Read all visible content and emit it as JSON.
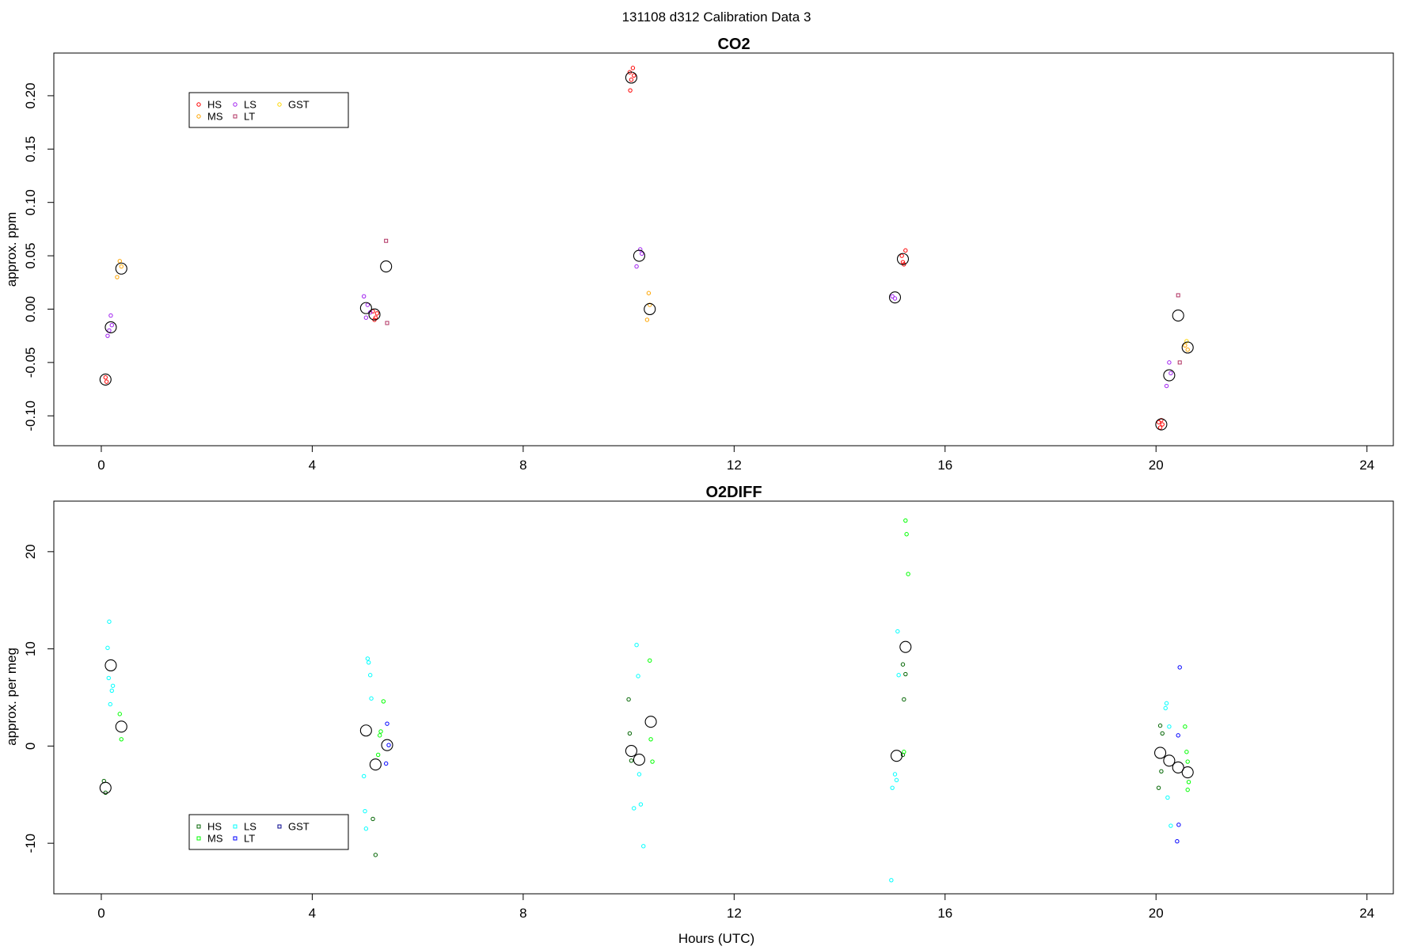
{
  "figure": {
    "suptitle": "131108   d312   Calibration Data 3",
    "xlabel": "Hours (UTC)"
  },
  "chart_data": [
    {
      "type": "scatter",
      "title": "CO2",
      "xlabel": "",
      "ylabel": "approx. ppm",
      "xlim": [
        -0.9,
        24.5
      ],
      "ylim": [
        -0.128,
        0.24
      ],
      "xticks": [
        0,
        4,
        8,
        12,
        16,
        20,
        24
      ],
      "yticks": [
        -0.1,
        -0.05,
        0.0,
        0.05,
        0.1,
        0.15,
        0.2
      ],
      "ytick_labels": [
        "-0.10",
        "-0.05",
        "0.00",
        "0.05",
        "0.10",
        "0.15",
        "0.20"
      ],
      "legend": {
        "position": "top-left",
        "ncol": 3,
        "items": [
          {
            "label": "HS",
            "color": "#ff0000",
            "marker": "circle"
          },
          {
            "label": "MS",
            "color": "#ffa500",
            "marker": "circle"
          },
          {
            "label": "LS",
            "color": "#a020f0",
            "marker": "circle"
          },
          {
            "label": "LT",
            "color": "#b03060",
            "marker": "square"
          },
          {
            "label": "GST",
            "color": "#ffd700",
            "marker": "circle"
          }
        ]
      },
      "series": [
        {
          "name": "HS",
          "color": "#ff0000",
          "marker": "circle",
          "points": [
            [
              0.08,
              -0.064
            ],
            [
              0.1,
              -0.068
            ],
            [
              5.15,
              -0.002
            ],
            [
              5.2,
              -0.008
            ],
            [
              5.18,
              -0.01
            ],
            [
              5.23,
              -0.004
            ],
            [
              10.02,
              0.222
            ],
            [
              10.05,
              0.215
            ],
            [
              10.03,
              0.205
            ],
            [
              10.08,
              0.226
            ],
            [
              10.1,
              0.219
            ],
            [
              15.18,
              0.05
            ],
            [
              15.22,
              0.042
            ],
            [
              15.25,
              0.055
            ],
            [
              15.2,
              0.044
            ],
            [
              20.05,
              -0.106
            ],
            [
              20.08,
              -0.111
            ],
            [
              20.1,
              -0.104
            ],
            [
              20.12,
              -0.108
            ]
          ]
        },
        {
          "name": "MS",
          "color": "#ffa500",
          "marker": "circle",
          "points": [
            [
              0.3,
              0.03
            ],
            [
              0.35,
              0.045
            ],
            [
              0.38,
              0.04
            ],
            [
              10.38,
              0.015
            ],
            [
              10.35,
              -0.01
            ],
            [
              10.4,
              0.004
            ],
            [
              20.55,
              -0.034
            ],
            [
              20.6,
              -0.038
            ]
          ]
        },
        {
          "name": "LS",
          "color": "#a020f0",
          "marker": "circle",
          "points": [
            [
              0.12,
              -0.025
            ],
            [
              0.18,
              -0.006
            ],
            [
              0.2,
              -0.015
            ],
            [
              0.15,
              -0.02
            ],
            [
              4.98,
              0.012
            ],
            [
              5.05,
              0.004
            ],
            [
              5.02,
              -0.008
            ],
            [
              5.1,
              -0.003
            ],
            [
              10.15,
              0.04
            ],
            [
              10.22,
              0.056
            ],
            [
              10.25,
              0.052
            ],
            [
              15.0,
              0.012
            ],
            [
              15.05,
              0.01
            ],
            [
              20.2,
              -0.072
            ],
            [
              20.25,
              -0.05
            ],
            [
              20.28,
              -0.06
            ]
          ]
        },
        {
          "name": "LT",
          "color": "#b03060",
          "marker": "square",
          "points": [
            [
              5.4,
              0.064
            ],
            [
              5.42,
              -0.013
            ],
            [
              20.42,
              0.013
            ],
            [
              20.45,
              -0.05
            ]
          ]
        },
        {
          "name": "GST",
          "color": "#ffd700",
          "marker": "circle",
          "points": [
            [
              20.58,
              -0.03
            ]
          ]
        }
      ],
      "means": {
        "color": "#000000",
        "marker": "large-circle",
        "points": [
          [
            0.08,
            -0.066
          ],
          [
            0.18,
            -0.017
          ],
          [
            0.38,
            0.038
          ],
          [
            5.02,
            0.001
          ],
          [
            5.18,
            -0.005
          ],
          [
            5.4,
            0.04
          ],
          [
            10.05,
            0.217
          ],
          [
            10.2,
            0.05
          ],
          [
            10.4,
            0.0
          ],
          [
            15.05,
            0.011
          ],
          [
            15.2,
            0.047
          ],
          [
            20.1,
            -0.108
          ],
          [
            20.25,
            -0.062
          ],
          [
            20.42,
            -0.006
          ],
          [
            20.6,
            -0.036
          ]
        ]
      }
    },
    {
      "type": "scatter",
      "title": "O2DIFF",
      "xlabel": "Hours (UTC)",
      "ylabel": "approx. per meg",
      "xlim": [
        -0.9,
        24.5
      ],
      "ylim": [
        -15.2,
        25.2
      ],
      "xticks": [
        0,
        4,
        8,
        12,
        16,
        20,
        24
      ],
      "yticks": [
        -10,
        0,
        10,
        20
      ],
      "ytick_labels": [
        "-10",
        "0",
        "10",
        "20"
      ],
      "legend": {
        "position": "bottom-left",
        "ncol": 3,
        "items": [
          {
            "label": "HS",
            "color": "#006400",
            "marker": "square"
          },
          {
            "label": "MS",
            "color": "#00ff00",
            "marker": "square"
          },
          {
            "label": "LS",
            "color": "#00ffff",
            "marker": "square"
          },
          {
            "label": "LT",
            "color": "#0000ff",
            "marker": "square"
          },
          {
            "label": "GST",
            "color": "#00008b",
            "marker": "square"
          }
        ]
      },
      "series": [
        {
          "name": "HS",
          "color": "#006400",
          "marker": "circle",
          "points": [
            [
              0.05,
              -3.6
            ],
            [
              0.08,
              -4.8
            ],
            [
              5.2,
              -11.2
            ],
            [
              5.15,
              -7.5
            ],
            [
              10.0,
              4.8
            ],
            [
              10.02,
              1.3
            ],
            [
              10.05,
              -1.5
            ],
            [
              15.2,
              8.4
            ],
            [
              15.22,
              4.8
            ],
            [
              15.25,
              7.4
            ],
            [
              15.2,
              -0.9
            ],
            [
              20.05,
              -4.3
            ],
            [
              20.08,
              2.1
            ],
            [
              20.1,
              -2.6
            ],
            [
              20.12,
              1.3
            ]
          ]
        },
        {
          "name": "MS",
          "color": "#00ff00",
          "marker": "circle",
          "points": [
            [
              0.35,
              3.3
            ],
            [
              0.38,
              0.7
            ],
            [
              5.35,
              4.6
            ],
            [
              5.3,
              1.5
            ],
            [
              5.28,
              1.1
            ],
            [
              5.25,
              -0.9
            ],
            [
              10.4,
              8.8
            ],
            [
              10.42,
              0.7
            ],
            [
              10.45,
              -1.6
            ],
            [
              15.25,
              23.2
            ],
            [
              15.27,
              21.8
            ],
            [
              15.3,
              17.7
            ],
            [
              15.22,
              -0.6
            ],
            [
              20.58,
              -0.6
            ],
            [
              20.6,
              -1.6
            ],
            [
              20.62,
              -3.7
            ],
            [
              20.6,
              -4.5
            ],
            [
              20.55,
              2.0
            ]
          ]
        },
        {
          "name": "LS",
          "color": "#00ffff",
          "marker": "circle",
          "points": [
            [
              0.15,
              12.8
            ],
            [
              0.12,
              10.1
            ],
            [
              0.14,
              7.0
            ],
            [
              0.22,
              6.2
            ],
            [
              0.2,
              5.7
            ],
            [
              0.17,
              4.3
            ],
            [
              5.05,
              9.0
            ],
            [
              5.07,
              8.6
            ],
            [
              5.1,
              7.3
            ],
            [
              5.12,
              4.9
            ],
            [
              4.98,
              -3.1
            ],
            [
              5.0,
              -6.7
            ],
            [
              5.02,
              -8.5
            ],
            [
              10.15,
              10.4
            ],
            [
              10.18,
              7.2
            ],
            [
              10.2,
              -2.9
            ],
            [
              10.23,
              -6.0
            ],
            [
              10.28,
              -10.3
            ],
            [
              10.1,
              -6.4
            ],
            [
              15.1,
              11.8
            ],
            [
              15.12,
              7.3
            ],
            [
              15.05,
              -2.9
            ],
            [
              15.08,
              -3.5
            ],
            [
              15.0,
              -4.3
            ],
            [
              14.98,
              -13.8
            ],
            [
              20.2,
              4.4
            ],
            [
              20.18,
              3.9
            ],
            [
              20.25,
              2.0
            ],
            [
              20.22,
              -5.3
            ],
            [
              20.28,
              -8.2
            ]
          ]
        },
        {
          "name": "LT",
          "color": "#0000ff",
          "marker": "circle",
          "points": [
            [
              5.42,
              2.3
            ],
            [
              5.4,
              -1.8
            ],
            [
              5.45,
              0.1
            ],
            [
              20.45,
              8.1
            ],
            [
              20.42,
              1.1
            ],
            [
              20.43,
              -8.1
            ],
            [
              20.4,
              -9.8
            ]
          ]
        },
        {
          "name": "GST",
          "color": "#00008b",
          "marker": "circle",
          "points": []
        }
      ],
      "means": {
        "color": "#000000",
        "marker": "large-circle",
        "points": [
          [
            0.08,
            -4.3
          ],
          [
            0.18,
            8.3
          ],
          [
            0.38,
            2.0
          ],
          [
            5.02,
            1.6
          ],
          [
            5.2,
            -1.9
          ],
          [
            5.42,
            0.1
          ],
          [
            10.05,
            -0.5
          ],
          [
            10.2,
            -1.4
          ],
          [
            10.42,
            2.5
          ],
          [
            15.08,
            -1.0
          ],
          [
            15.25,
            10.2
          ],
          [
            20.08,
            -0.7
          ],
          [
            20.25,
            -1.5
          ],
          [
            20.42,
            -2.2
          ],
          [
            20.6,
            -2.7
          ]
        ]
      }
    }
  ]
}
